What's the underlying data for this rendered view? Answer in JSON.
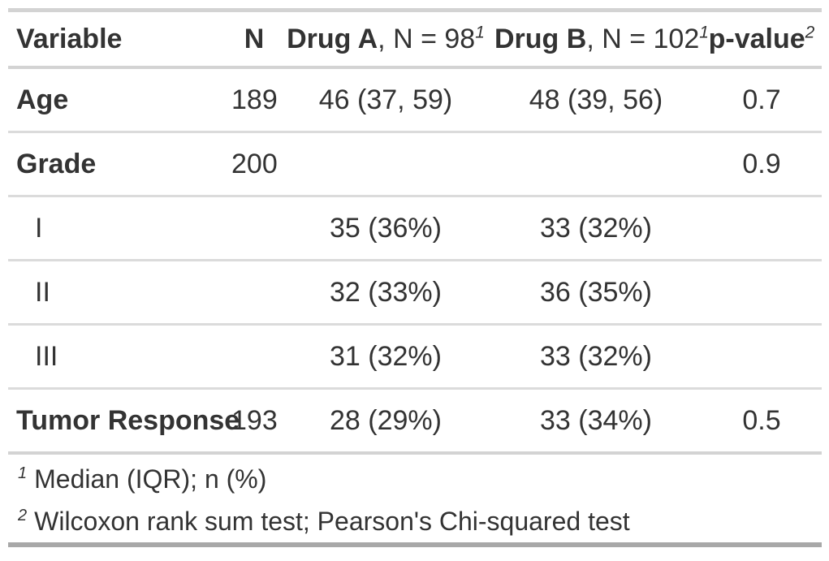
{
  "table": {
    "columns": {
      "variable": {
        "label": "Variable"
      },
      "n": {
        "label": "N"
      },
      "drug_a": {
        "label": "Drug A",
        "suffix": ", N = 98",
        "footnote_ref": "1"
      },
      "drug_b": {
        "label": "Drug B",
        "suffix": ", N = 102",
        "footnote_ref": "1"
      },
      "p_value": {
        "label": "p-value",
        "footnote_ref": "2"
      }
    },
    "rows": [
      {
        "label": "Age",
        "n": "189",
        "drug_a": "46 (37, 59)",
        "drug_b": "48 (39, 56)",
        "p": "0.7"
      },
      {
        "label": "Grade",
        "n": "200",
        "drug_a": "",
        "drug_b": "",
        "p": "0.9"
      },
      {
        "label": "I",
        "n": "",
        "drug_a": "35 (36%)",
        "drug_b": "33 (32%)",
        "p": ""
      },
      {
        "label": "II",
        "n": "",
        "drug_a": "32 (33%)",
        "drug_b": "36 (35%)",
        "p": ""
      },
      {
        "label": "III",
        "n": "",
        "drug_a": "31 (32%)",
        "drug_b": "33 (32%)",
        "p": ""
      },
      {
        "label": "Tumor Response",
        "n": "193",
        "drug_a": "28 (29%)",
        "drug_b": "33 (34%)",
        "p": "0.5"
      }
    ]
  },
  "footnotes": [
    {
      "marker": "1",
      "text": "Median (IQR); n (%)"
    },
    {
      "marker": "2",
      "text": "Wilcoxon rank sum test; Pearson's Chi-squared test"
    }
  ],
  "colors": {
    "text": "#333333",
    "border_light": "#d3d3d3",
    "row_separator": "#dbdbdb",
    "border_dark_bottom": "#a8a8a8",
    "background": "#ffffff"
  }
}
